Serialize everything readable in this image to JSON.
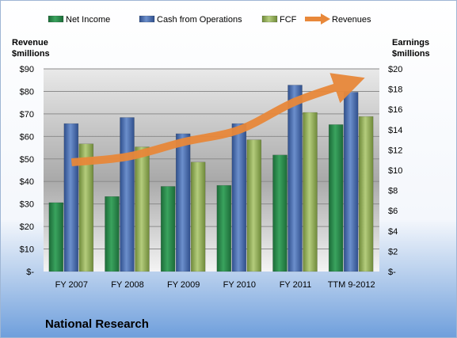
{
  "chart_data": {
    "type": "bar",
    "title": "National Research",
    "categories": [
      "FY 2007",
      "FY 2008",
      "FY 2009",
      "FY 2010",
      "FY 2011",
      "TTM 9-2012"
    ],
    "left_axis": {
      "label_line1": "Revenue",
      "label_line2": "$millions",
      "ylim": [
        0,
        90
      ],
      "ticks": [
        "$-",
        "$10",
        "$20",
        "$30",
        "$40",
        "$50",
        "$60",
        "$70",
        "$80",
        "$90"
      ]
    },
    "right_axis": {
      "label_line1": "Earnings",
      "label_line2": "$millions",
      "ylim": [
        0,
        20
      ],
      "ticks": [
        "$-",
        "$2",
        "$4",
        "$6",
        "$8",
        "$10",
        "$12",
        "$14",
        "$16",
        "$18",
        "$20"
      ]
    },
    "series": [
      {
        "name": "Net Income",
        "kind": "bar",
        "axis": "right",
        "color": "#2e8b4e",
        "values": [
          6.8,
          7.4,
          8.4,
          8.5,
          11.5,
          14.5
        ]
      },
      {
        "name": "Cash from Operations",
        "kind": "bar",
        "axis": "right",
        "color": "#4a6fb0",
        "values": [
          14.6,
          15.2,
          13.6,
          14.6,
          18.4,
          17.7
        ]
      },
      {
        "name": "FCF",
        "kind": "bar",
        "axis": "right",
        "color": "#98b35c",
        "values": [
          12.6,
          12.3,
          10.8,
          13.0,
          15.7,
          15.3
        ]
      },
      {
        "name": "Revenues",
        "kind": "line",
        "axis": "left",
        "color": "#e8883a",
        "values": [
          48.5,
          51.0,
          57.5,
          63.0,
          75.5,
          84.0
        ]
      }
    ],
    "legend_position": "top",
    "grid": true
  }
}
